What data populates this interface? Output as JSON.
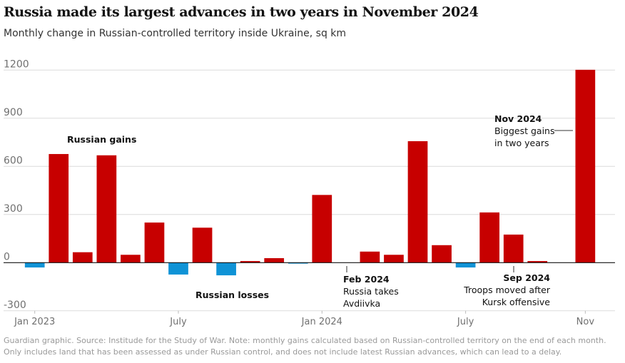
{
  "title": "Russia made its largest advances in two years in November 2024",
  "subtitle": "Monthly change in Russian-controlled territory inside Ukraine, sq km",
  "footer": "Guardian graphic. Source: Institude for the Study of War. Note: monthly gains calculated based on Russian-controlled territory on the end of each month. Only includes land that has been assessed as under Russian control, and does not include latest Russian advances, which can lead to a delay.",
  "colors": {
    "gain": "#c70000",
    "loss": "#0f93d6",
    "grid": "#dcdcdc",
    "axis": "#121212"
  },
  "chart_data": {
    "type": "bar",
    "title": "Russia made its largest advances in two years in November 2024",
    "ylabel": "",
    "xlabel": "",
    "ylim": [
      -300,
      1200
    ],
    "yticks": [
      -300,
      0,
      300,
      600,
      900,
      1200
    ],
    "grid": true,
    "values": [
      -30,
      677,
      65,
      669,
      49,
      250,
      -74,
      218,
      -79,
      10,
      28,
      -6,
      422,
      0,
      69,
      49,
      757,
      109,
      -30,
      313,
      175,
      10,
      null,
      1202
    ],
    "xticks": [
      {
        "slot": 0,
        "label": "Jan 2023"
      },
      {
        "slot": 6,
        "label": "July"
      },
      {
        "slot": 12,
        "label": "Jan 2024"
      },
      {
        "slot": 18,
        "label": "July"
      },
      {
        "slot": 23,
        "label": "Nov"
      }
    ],
    "legend": {
      "gains": "Russian gains",
      "losses": "Russian losses"
    },
    "annotations": {
      "feb": {
        "slot": 13,
        "heading": "Feb 2024",
        "line1": "Russia takes",
        "line2": "Avdiivka"
      },
      "sep": {
        "slot": 20,
        "heading": "Sep 2024",
        "line1": "Troops moved after",
        "line2": "Kursk offensive"
      },
      "nov": {
        "slot": 23,
        "heading": "Nov 2024",
        "line1": "Biggest gains",
        "line2": "in two years"
      }
    }
  }
}
